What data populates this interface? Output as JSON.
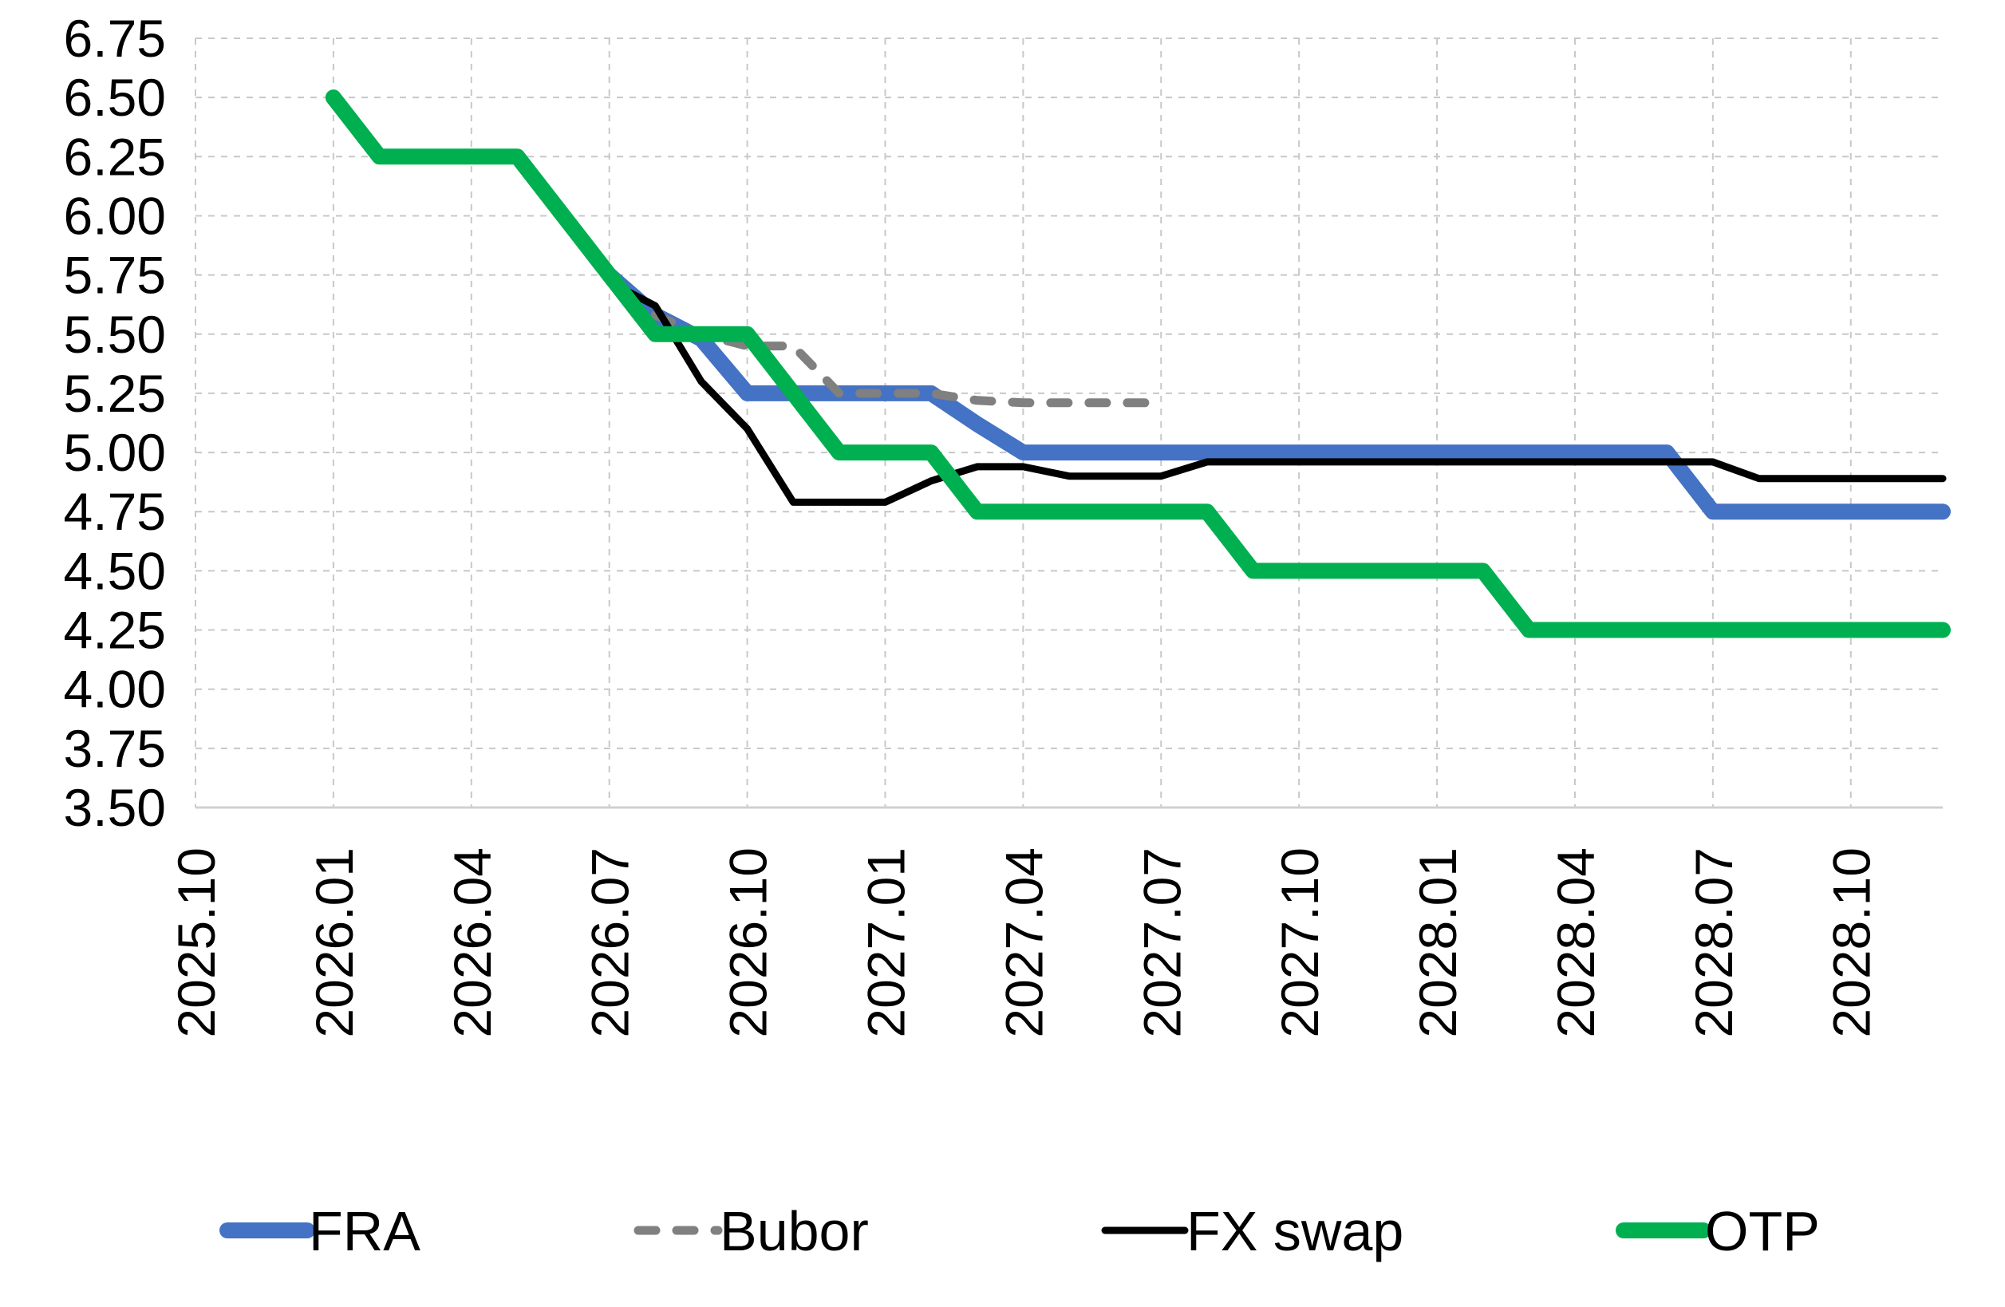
{
  "chart_data": {
    "type": "line",
    "title": "",
    "xlabel": "",
    "ylabel": "",
    "ylim": [
      3.5,
      6.75
    ],
    "yticks": [
      "6.75",
      "6.50",
      "6.25",
      "6.00",
      "5.75",
      "5.50",
      "5.25",
      "5.00",
      "4.75",
      "4.50",
      "4.25",
      "4.00",
      "3.75",
      "3.50"
    ],
    "xticks": [
      "2025.10",
      "2026.01",
      "2026.04",
      "2026.07",
      "2026.10",
      "2027.01",
      "2027.04",
      "2027.07",
      "2027.10",
      "2028.01",
      "2028.04",
      "2028.07",
      "2028.10"
    ],
    "xlim": [
      "2025.10",
      "2028.12"
    ],
    "grid": true,
    "legend_position": "bottom",
    "series": [
      {
        "name": "FRA",
        "color": "#4472C4",
        "style": "solid",
        "points": [
          [
            "2026.07",
            5.75
          ],
          [
            "2026.08",
            5.58
          ],
          [
            "2026.09",
            5.48
          ],
          [
            "2026.10",
            5.25
          ],
          [
            "2026.11",
            5.25
          ],
          [
            "2026.12",
            5.25
          ],
          [
            "2027.01",
            5.25
          ],
          [
            "2027.02",
            5.25
          ],
          [
            "2027.03",
            5.12
          ],
          [
            "2027.04",
            5.0
          ],
          [
            "2027.07",
            5.0
          ],
          [
            "2027.10",
            5.0
          ],
          [
            "2028.01",
            5.0
          ],
          [
            "2028.04",
            5.0
          ],
          [
            "2028.06",
            5.0
          ],
          [
            "2028.07",
            4.75
          ],
          [
            "2028.10",
            4.75
          ],
          [
            "2028.12",
            4.75
          ]
        ]
      },
      {
        "name": "Bubor",
        "color": "#808080",
        "style": "dashed",
        "points": [
          [
            "2026.08",
            5.58
          ],
          [
            "2026.09",
            5.5
          ],
          [
            "2026.10",
            5.45
          ],
          [
            "2026.11",
            5.45
          ],
          [
            "2026.12",
            5.25
          ],
          [
            "2027.01",
            5.25
          ],
          [
            "2027.02",
            5.25
          ],
          [
            "2027.03",
            5.22
          ],
          [
            "2027.04",
            5.21
          ],
          [
            "2027.05",
            5.21
          ],
          [
            "2027.06",
            5.21
          ],
          [
            "2027.07",
            5.21
          ]
        ]
      },
      {
        "name": "FX swap",
        "color": "#000000",
        "style": "solid",
        "points": [
          [
            "2026.07",
            5.72
          ],
          [
            "2026.08",
            5.62
          ],
          [
            "2026.09",
            5.3
          ],
          [
            "2026.10",
            5.1
          ],
          [
            "2026.11",
            4.79
          ],
          [
            "2026.12",
            4.79
          ],
          [
            "2027.01",
            4.79
          ],
          [
            "2027.02",
            4.88
          ],
          [
            "2027.03",
            4.94
          ],
          [
            "2027.04",
            4.94
          ],
          [
            "2027.05",
            4.9
          ],
          [
            "2027.06",
            4.9
          ],
          [
            "2027.07",
            4.9
          ],
          [
            "2027.08",
            4.96
          ],
          [
            "2027.10",
            4.96
          ],
          [
            "2028.01",
            4.96
          ],
          [
            "2028.04",
            4.96
          ],
          [
            "2028.07",
            4.96
          ],
          [
            "2028.08",
            4.89
          ],
          [
            "2028.10",
            4.89
          ],
          [
            "2028.12",
            4.89
          ]
        ]
      },
      {
        "name": "OTP",
        "color": "#00B050",
        "style": "solid",
        "points": [
          [
            "2026.01",
            6.5
          ],
          [
            "2026.02",
            6.25
          ],
          [
            "2026.03",
            6.25
          ],
          [
            "2026.04",
            6.25
          ],
          [
            "2026.05",
            6.25
          ],
          [
            "2026.08",
            5.5
          ],
          [
            "2026.09",
            5.5
          ],
          [
            "2026.10",
            5.5
          ],
          [
            "2026.12",
            5.0
          ],
          [
            "2027.01",
            5.0
          ],
          [
            "2027.02",
            5.0
          ],
          [
            "2027.03",
            4.75
          ],
          [
            "2027.07",
            4.75
          ],
          [
            "2027.08",
            4.75
          ],
          [
            "2027.09",
            4.5
          ],
          [
            "2028.02",
            4.5
          ],
          [
            "2028.03",
            4.25
          ],
          [
            "2028.12",
            4.25
          ]
        ]
      }
    ]
  }
}
